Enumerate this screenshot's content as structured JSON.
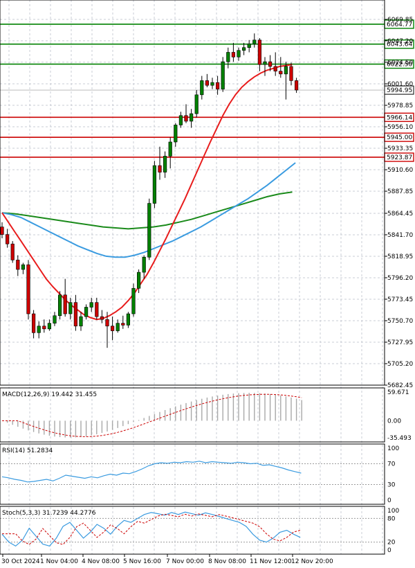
{
  "chart_data": {
    "type": "candlestick",
    "y_axis_ticks": [
      "6069.85",
      "6047.20",
      "6024.50",
      "6001.60",
      "5978.85",
      "5956.10",
      "5933.35",
      "5910.60",
      "5887.85",
      "5864.45",
      "5841.70",
      "5818.95",
      "5796.20",
      "5773.45",
      "5750.70",
      "5727.95",
      "5705.20",
      "5682.45"
    ],
    "ylim": [
      5682.45,
      6069.85
    ],
    "x_axis_labels": [
      "30 Oct 2024",
      "1 Nov 04:00",
      "4 Nov 08:00",
      "5 Nov 16:00",
      "7 Nov 00:00",
      "8 Nov 08:00",
      "11 Nov 12:00",
      "12 Nov 20:00"
    ],
    "current_price": "5994.95",
    "levels": [
      {
        "value": "6064.77",
        "color": "#008000"
      },
      {
        "value": "6043.64",
        "color": "#008000"
      },
      {
        "value": "6022.50",
        "color": "#008000"
      },
      {
        "value": "5966.14",
        "color": "#cc0000"
      },
      {
        "value": "5945.00",
        "color": "#cc0000"
      },
      {
        "value": "5923.87",
        "color": "#cc0000"
      }
    ],
    "candles": [
      [
        5850,
        5855,
        5838,
        5842
      ],
      [
        5842,
        5848,
        5828,
        5832
      ],
      [
        5832,
        5835,
        5812,
        5815
      ],
      [
        5815,
        5820,
        5798,
        5805
      ],
      [
        5805,
        5812,
        5800,
        5810
      ],
      [
        5810,
        5815,
        5752,
        5758
      ],
      [
        5758,
        5762,
        5732,
        5738
      ],
      [
        5738,
        5750,
        5732,
        5745
      ],
      [
        5745,
        5752,
        5738,
        5742
      ],
      [
        5742,
        5752,
        5740,
        5748
      ],
      [
        5748,
        5760,
        5745,
        5756
      ],
      [
        5756,
        5782,
        5752,
        5778
      ],
      [
        5778,
        5795,
        5755,
        5758
      ],
      [
        5758,
        5775,
        5752,
        5770
      ],
      [
        5770,
        5778,
        5740,
        5745
      ],
      [
        5745,
        5760,
        5740,
        5755
      ],
      [
        5755,
        5768,
        5752,
        5765
      ],
      [
        5765,
        5775,
        5760,
        5770
      ],
      [
        5770,
        5775,
        5752,
        5755
      ],
      [
        5755,
        5762,
        5748,
        5752
      ],
      [
        5752,
        5760,
        5722,
        5745
      ],
      [
        5745,
        5755,
        5730,
        5740
      ],
      [
        5740,
        5752,
        5738,
        5748
      ],
      [
        5748,
        5756,
        5742,
        5746
      ],
      [
        5746,
        5760,
        5743,
        5758
      ],
      [
        5758,
        5790,
        5755,
        5785
      ],
      [
        5785,
        5805,
        5780,
        5802
      ],
      [
        5802,
        5820,
        5795,
        5818
      ],
      [
        5818,
        5880,
        5815,
        5875
      ],
      [
        5875,
        5920,
        5870,
        5915
      ],
      [
        5915,
        5935,
        5900,
        5908
      ],
      [
        5908,
        5930,
        5902,
        5925
      ],
      [
        5925,
        5945,
        5912,
        5940
      ],
      [
        5940,
        5960,
        5935,
        5958
      ],
      [
        5958,
        5972,
        5955,
        5968
      ],
      [
        5968,
        5980,
        5960,
        5962
      ],
      [
        5962,
        5975,
        5955,
        5970
      ],
      [
        5970,
        5995,
        5966,
        5990
      ],
      [
        5990,
        6010,
        5985,
        6005
      ],
      [
        6005,
        6012,
        5998,
        6000
      ],
      [
        6000,
        6008,
        5996,
        6003
      ],
      [
        6003,
        6010,
        5990,
        5996
      ],
      [
        5996,
        6030,
        5993,
        6025
      ],
      [
        6025,
        6040,
        6018,
        6035
      ],
      [
        6035,
        6045,
        6025,
        6030
      ],
      [
        6030,
        6040,
        6026,
        6037
      ],
      [
        6037,
        6045,
        6032,
        6040
      ],
      [
        6040,
        6048,
        6035,
        6044
      ],
      [
        6044,
        6055,
        6040,
        6048
      ],
      [
        6048,
        6050,
        6015,
        6022
      ],
      [
        6022,
        6030,
        6010,
        6025
      ],
      [
        6025,
        6032,
        6015,
        6020
      ],
      [
        6020,
        6035,
        6010,
        6015
      ],
      [
        6015,
        6030,
        6008,
        6012
      ],
      [
        6012,
        6025,
        5985,
        6020
      ],
      [
        6020,
        6024,
        6000,
        6005
      ],
      [
        6005,
        6008,
        5992,
        5995
      ]
    ],
    "sma_fast": [
      5865,
      5855,
      5845,
      5835,
      5825,
      5815,
      5805,
      5795,
      5787,
      5780,
      5773,
      5767,
      5762,
      5757,
      5754,
      5752,
      5753,
      5756,
      5760,
      5765,
      5772,
      5780,
      5790,
      5800,
      5812,
      5825,
      5838,
      5852,
      5866,
      5880,
      5895,
      5910,
      5925,
      5940,
      5954,
      5968,
      5980,
      5990,
      5998,
      6004,
      6009,
      6013,
      6016,
      6018,
      6020,
      6021,
      6022
    ],
    "sma_mid": [
      5865,
      5863,
      5860,
      5855,
      5850,
      5845,
      5840,
      5835,
      5830,
      5826,
      5822,
      5819,
      5818,
      5818,
      5820,
      5823,
      5827,
      5831,
      5835,
      5840,
      5845,
      5850,
      5856,
      5862,
      5868,
      5874,
      5880,
      5887,
      5894,
      5902,
      5910,
      5918
    ],
    "sma_slow": [
      5865,
      5864,
      5862,
      5860,
      5858,
      5856,
      5854,
      5852,
      5850,
      5849,
      5848,
      5849,
      5850,
      5852,
      5855,
      5858,
      5862,
      5866,
      5870,
      5874,
      5878,
      5882,
      5885,
      5887
    ],
    "macd": {
      "label": "MACD(12,26,9) 19.442 31.455",
      "ticks": [
        "59.671",
        "0.00",
        "-35.493"
      ]
    },
    "rsi": {
      "label": "RSI(14) 51.2834",
      "ticks": [
        "100",
        "70",
        "30",
        "0"
      ]
    },
    "stoch": {
      "label": "Stoch(5,3,3) 31.7239 44.2776",
      "ticks": [
        "100",
        "80",
        "20",
        "0"
      ]
    },
    "colors": {
      "bull": "#008000",
      "bear": "#cc0000",
      "sma_fast": "#e81c1c",
      "sma_mid": "#3a9be0",
      "sma_slow": "#1a8a1a",
      "grid": "#c8ccd4"
    }
  }
}
